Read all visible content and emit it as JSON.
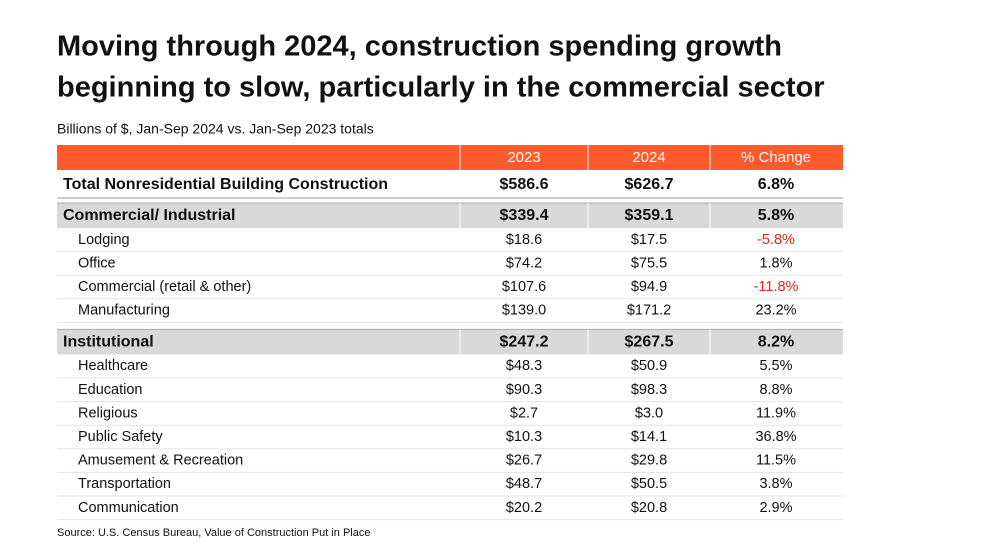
{
  "header": {
    "title": [
      "Moving through 2024, construction spending growth",
      "beginning to slow, particularly in the commercial sector"
    ],
    "subtitle": "Billions of $, Jan-Sep 2024 vs. Jan-Sep 2023 totals"
  },
  "table": {
    "columns": [
      "2023",
      "2024",
      "% Change"
    ],
    "total": [
      "Total Nonresidential Building Construction",
      "$586.6",
      "$626.7",
      "6.8%"
    ],
    "groups": [
      {
        "row": [
          "Commercial/ Industrial",
          "$339.4",
          "$359.1",
          "5.8%"
        ],
        "items": [
          [
            "Lodging",
            "$18.6",
            "$17.5",
            "-5.8%"
          ],
          [
            "Office",
            "$74.2",
            "$75.5",
            "1.8%"
          ],
          [
            "Commercial (retail & other)",
            "$107.6",
            "$94.9",
            "-11.8%"
          ],
          [
            "Manufacturing",
            "$139.0",
            "$171.2",
            "23.2%"
          ]
        ]
      },
      {
        "row": [
          "Institutional",
          "$247.2",
          "$267.5",
          "8.2%"
        ],
        "items": [
          [
            "Healthcare",
            "$48.3",
            "$50.9",
            "5.5%"
          ],
          [
            "Education",
            "$90.3",
            "$98.3",
            "8.8%"
          ],
          [
            "Religious",
            "$2.7",
            "$3.0",
            "11.9%"
          ],
          [
            "Public Safety",
            "$10.3",
            "$14.1",
            "36.8%"
          ],
          [
            "Amusement & Recreation",
            "$26.7",
            "$29.8",
            "11.5%"
          ],
          [
            "Transportation",
            "$48.7",
            "$50.5",
            "3.8%"
          ],
          [
            "Communication",
            "$20.2",
            "$20.8",
            "2.9%"
          ]
        ]
      }
    ]
  },
  "footer": {
    "source": "Source: U.S. Census Bureau, Value of Construction Put in Place"
  }
}
